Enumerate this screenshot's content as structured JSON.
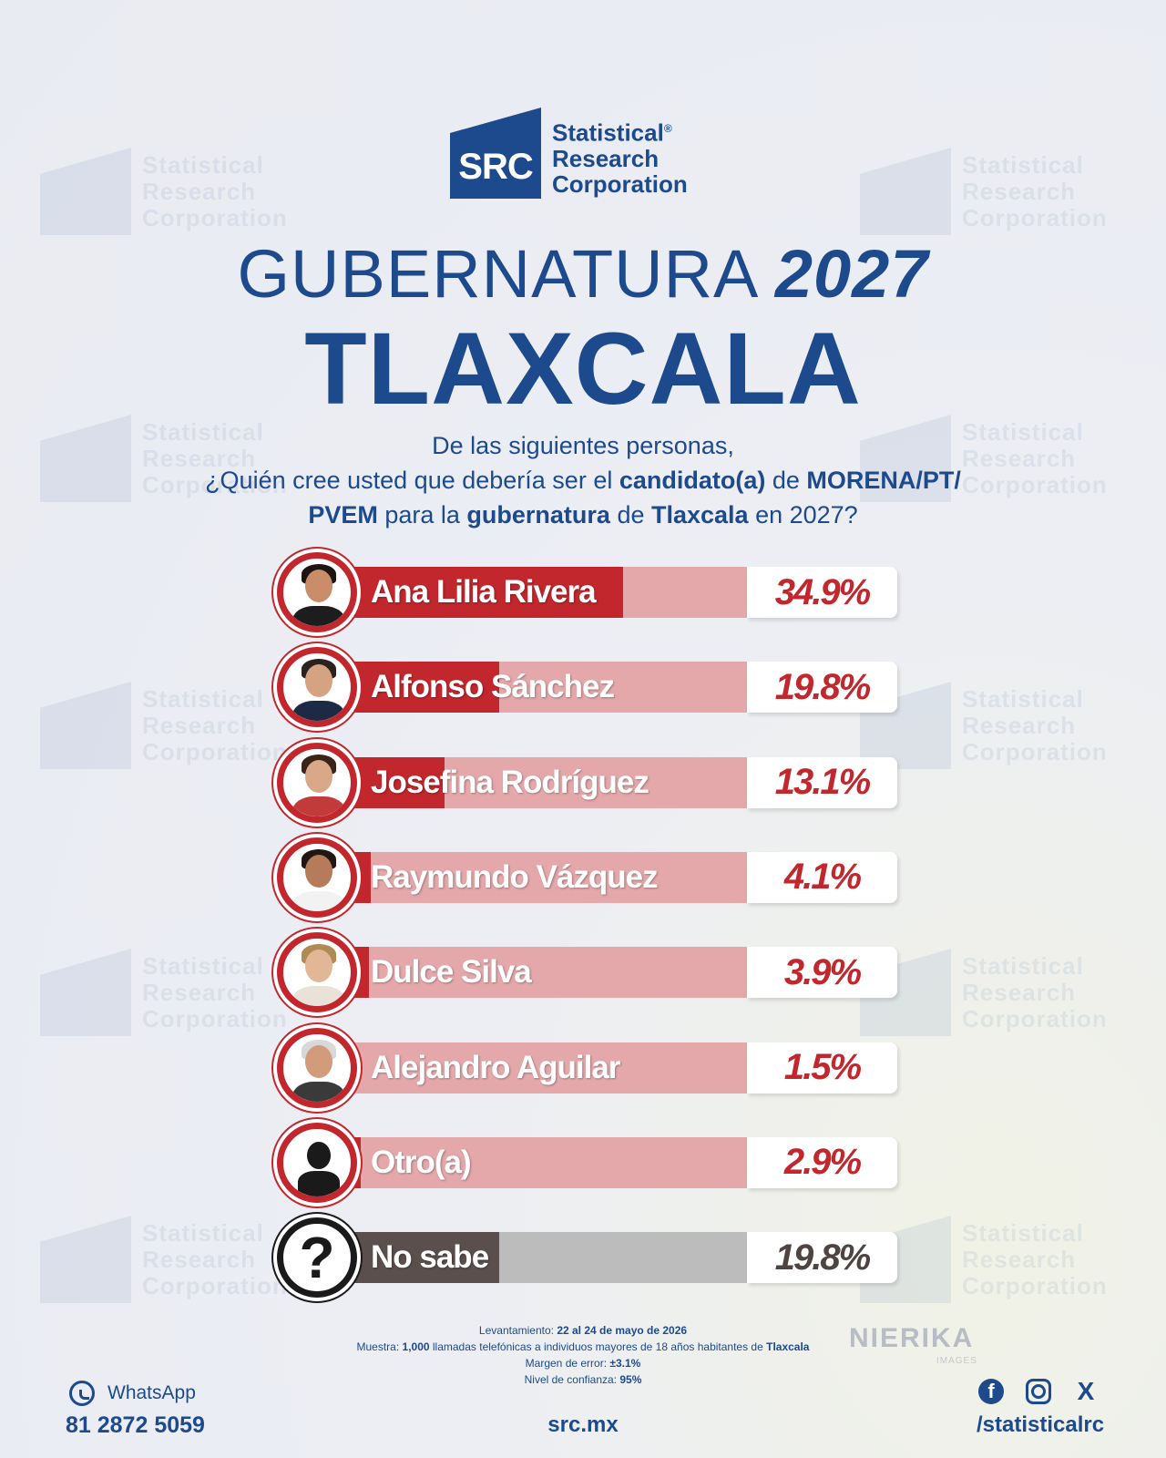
{
  "brand": {
    "logo_abbr": "SRC",
    "name_line1": "Statistical",
    "name_line2": "Research",
    "name_line3": "Corporation",
    "registered": "®",
    "watermark_abbr": "SRC",
    "watermark_line1": "Statistical",
    "watermark_line2": "Research",
    "watermark_line3": "Corporation"
  },
  "header": {
    "title_word": "GUBERNATURA",
    "title_year": "2027",
    "state": "TLAXCALA"
  },
  "question": {
    "line1": "De las siguientes personas,",
    "p1": "¿Quién cree usted que debería ser el ",
    "b1": "candidato(a)",
    "p2": " de ",
    "b2": "MORENA/PT/",
    "b3": "PVEM",
    "p3": " para la ",
    "b4": "gubernatura",
    "p4": " de ",
    "b5": "Tlaxcala",
    "p5": " en 2027?"
  },
  "chart_data": {
    "type": "bar",
    "orientation": "horizontal",
    "categories": [
      "Ana Lilia Rivera",
      "Alfonso Sánchez",
      "Josefina Rodríguez",
      "Raymundo Vázquez",
      "Dulce Silva",
      "Alejandro Aguilar",
      "Otro(a)",
      "No sabe"
    ],
    "values": [
      34.9,
      19.8,
      13.1,
      4.1,
      3.9,
      1.5,
      2.9,
      19.8
    ],
    "labels": [
      "34.9%",
      "19.8%",
      "13.1%",
      "4.1%",
      "3.9%",
      "1.5%",
      "2.9%",
      "19.8%"
    ],
    "xlim": [
      0,
      50
    ],
    "colors": {
      "bar": "#c1272d",
      "track": "#e4a8ab",
      "unknown_bar": "#5a4f4c",
      "unknown_track": "#bdbcbc"
    }
  },
  "footer": {
    "survey_label1": "Levantamiento: ",
    "survey_value1": "22 al 24 de mayo de 2026",
    "survey_label2": "Muestra: ",
    "survey_value2a": "1,000",
    "survey_text2": " llamadas telefónicas a individuos mayores de 18 años habitantes de ",
    "survey_value2b": "Tlaxcala",
    "survey_label3": "Margen de error: ",
    "survey_value3": "±3.1%",
    "survey_label4": "Nivel de confianza: ",
    "survey_value4": "95%",
    "partner": "NIERIKA",
    "partner_sub": "IMAGES",
    "whatsapp_label": "WhatsApp",
    "phone": "81 2872 5059",
    "website": "src.mx",
    "handle": "/statisticalrc",
    "icons": [
      "whatsapp-icon",
      "facebook-icon",
      "instagram-icon",
      "x-icon"
    ]
  }
}
